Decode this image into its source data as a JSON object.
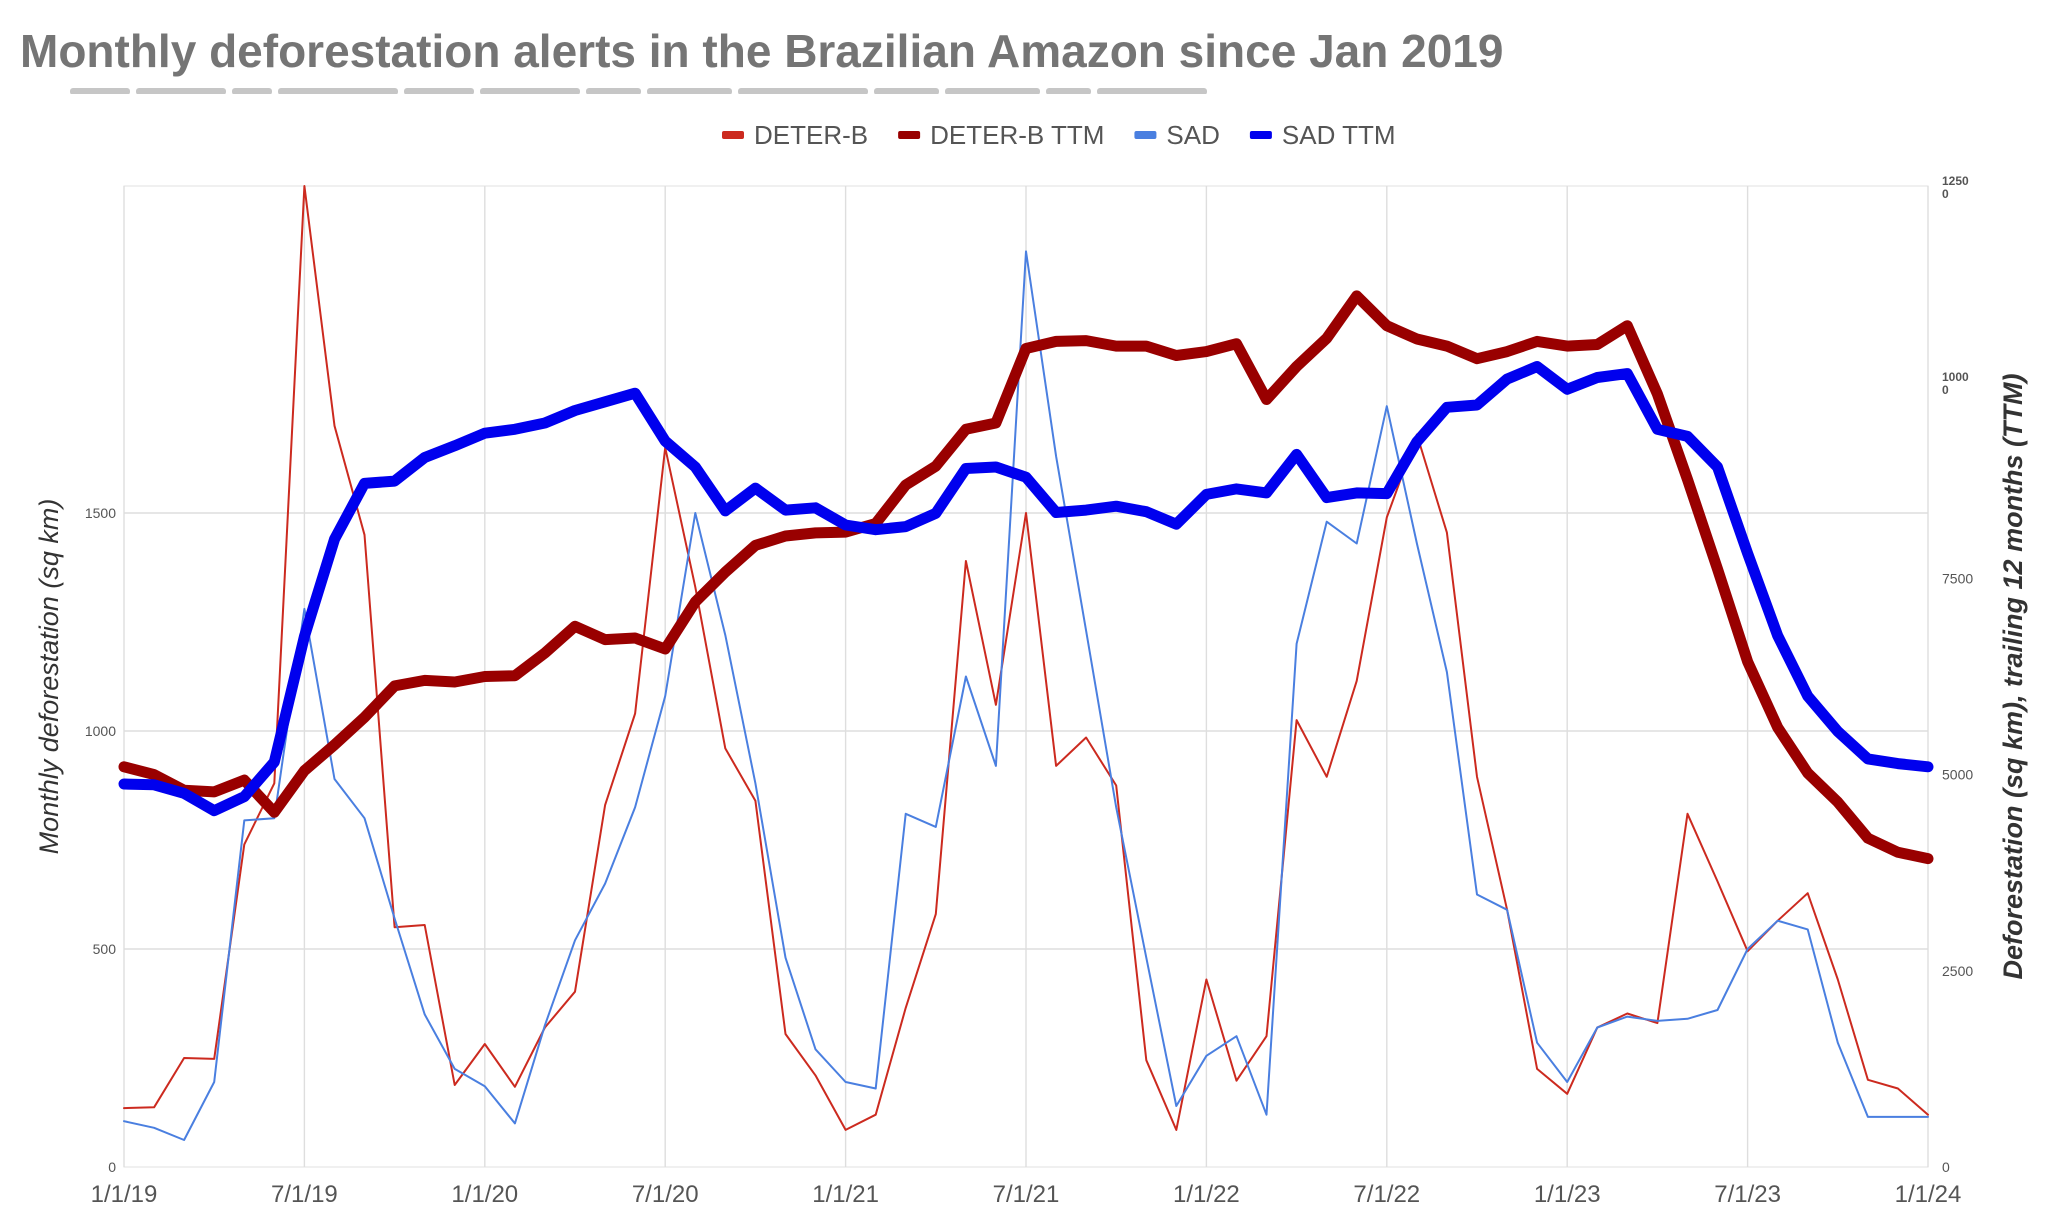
{
  "chart_data": {
    "type": "line",
    "title": "Monthly deforestation alerts in the Brazilian Amazon since Jan 2019",
    "y_left_label": "Monthly deforestation (sq km)",
    "y_right_label": "Deforestation (sq km), trailing 12 months (TTM)",
    "x_tick_labels": [
      "1/1/19",
      "7/1/19",
      "1/1/20",
      "7/1/20",
      "1/1/21",
      "7/1/21",
      "1/1/22",
      "7/1/22",
      "1/1/23",
      "7/1/23",
      "1/1/24"
    ],
    "y_left_ticks": [
      "0",
      "500",
      "1000",
      "1500"
    ],
    "y_right_ticks": [
      "0",
      "2500",
      "5000",
      "7500"
    ],
    "y_right_ticks_overlapping": [
      {
        "value": 10000,
        "label": "1000",
        "suffix": "0"
      },
      {
        "value": 12500,
        "label": "1250",
        "suffix": "0"
      }
    ],
    "ylim_left": [
      0,
      2250
    ],
    "ylim_right": [
      0,
      12500
    ],
    "x_range_months": [
      0,
      60
    ],
    "grid": true,
    "legend_position": "top-center",
    "series": [
      {
        "name": "DETER-B",
        "axis": "left",
        "color": "#cc2a1f",
        "style": "thin",
        "values": [
          135,
          137,
          250,
          248,
          740,
          880,
          2250,
          1700,
          1450,
          550,
          555,
          188,
          282,
          184,
          320,
          402,
          830,
          1040,
          1650,
          1330,
          960,
          840,
          305,
          210,
          85,
          120,
          365,
          580,
          1390,
          1060,
          1500,
          920,
          985,
          875,
          245,
          85,
          430,
          198,
          300,
          1025,
          895,
          1115,
          1490,
          1680,
          1455,
          895,
          590,
          225,
          168,
          320,
          352,
          330,
          810,
          655,
          495,
          565,
          628,
          430,
          200,
          180,
          120
        ]
      },
      {
        "name": "DETER-B TTM",
        "axis": "right",
        "color": "#990000",
        "style": "thick",
        "values": [
          5100,
          5000,
          4800,
          4780,
          4930,
          4520,
          5050,
          5380,
          5730,
          6130,
          6200,
          6180,
          6250,
          6260,
          6550,
          6890,
          6720,
          6740,
          6600,
          7200,
          7580,
          7920,
          8040,
          8080,
          8090,
          8200,
          8690,
          8930,
          9400,
          9480,
          10430,
          10520,
          10530,
          10460,
          10460,
          10340,
          10390,
          10490,
          9780,
          10200,
          10560,
          11100,
          10720,
          10550,
          10460,
          10300,
          10390,
          10520,
          10460,
          10480,
          10720,
          9850,
          8760,
          7620,
          6440,
          5600,
          5020,
          4650,
          4190,
          4010,
          3930
        ]
      },
      {
        "name": "SAD",
        "axis": "left",
        "color": "#4a7fe0",
        "style": "thin",
        "values": [
          105,
          90,
          62,
          195,
          795,
          800,
          1280,
          890,
          800,
          570,
          350,
          225,
          185,
          100,
          325,
          520,
          650,
          825,
          1080,
          1500,
          1220,
          880,
          480,
          270,
          195,
          180,
          810,
          780,
          1125,
          920,
          2100,
          1630,
          1230,
          825,
          480,
          140,
          255,
          300,
          120,
          1200,
          1480,
          1430,
          1745,
          1430,
          1135,
          625,
          590,
          285,
          195,
          320,
          345,
          335,
          340,
          360,
          500,
          565,
          545,
          285,
          115,
          115,
          115
        ]
      },
      {
        "name": "SAD TTM",
        "axis": "right",
        "color": "#0000ee",
        "style": "thick",
        "values": [
          4880,
          4870,
          4760,
          4540,
          4720,
          5160,
          6760,
          8000,
          8710,
          8740,
          9040,
          9190,
          9350,
          9400,
          9480,
          9640,
          9750,
          9860,
          9250,
          8920,
          8360,
          8650,
          8370,
          8400,
          8180,
          8120,
          8160,
          8330,
          8900,
          8920,
          8790,
          8340,
          8370,
          8420,
          8350,
          8190,
          8570,
          8640,
          8590,
          9080,
          8530,
          8590,
          8580,
          9240,
          9680,
          9710,
          10040,
          10200,
          9910,
          10060,
          10110,
          9400,
          9310,
          8920,
          7820,
          6770,
          6000,
          5550,
          5200,
          5140,
          5100
        ]
      }
    ]
  }
}
